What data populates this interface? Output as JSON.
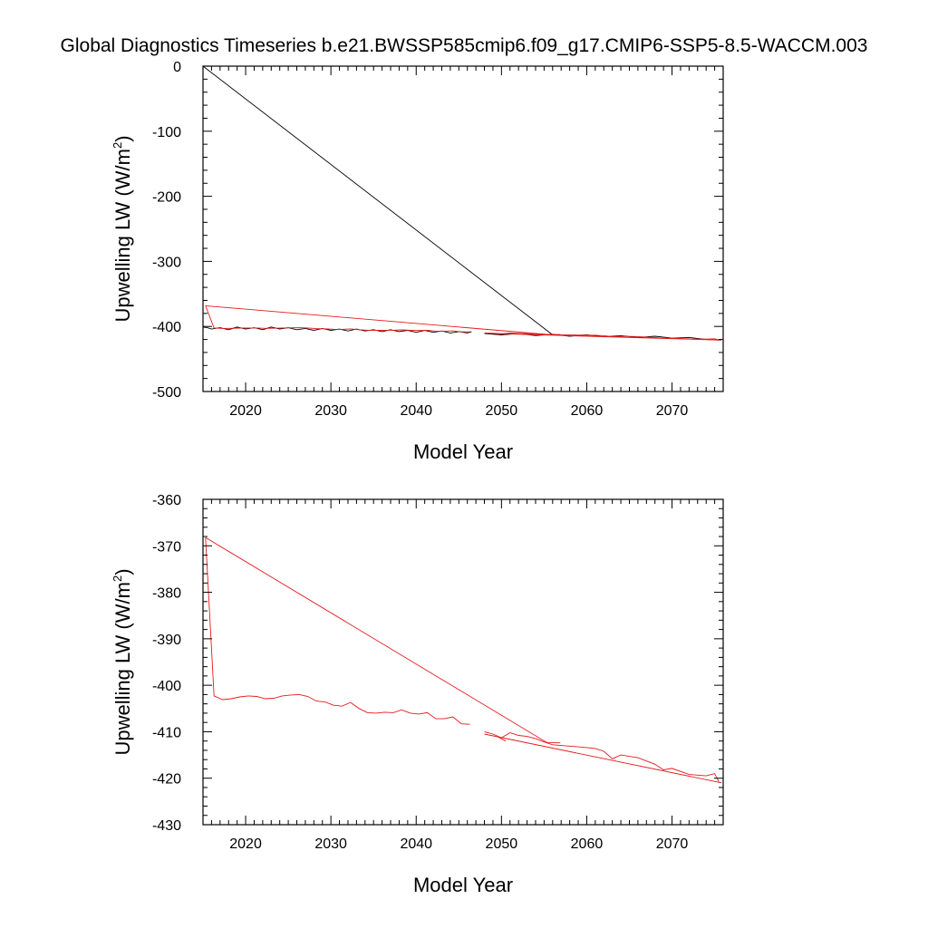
{
  "title": "Global Diagnostics Timeseries b.e21.BWSSP585cmip6.f09_g17.CMIP6-SSP5-8.5-WACCM.003",
  "colors": {
    "annual": "#000000",
    "smooth": "#e41a1c"
  },
  "chart_data": [
    {
      "type": "line",
      "xlabel": "Model Year",
      "ylabel": "Upwelling LW (W/m",
      "ylabel_sup": "2",
      "ylabel_end": ")",
      "xlim": [
        2015,
        2076
      ],
      "ylim": [
        -500,
        0
      ],
      "xticks": [
        2020,
        2030,
        2040,
        2050,
        2060,
        2070
      ],
      "xtick_labels": [
        "2020",
        "2030",
        "2040",
        "2050",
        "2060",
        "2070"
      ],
      "yticks": [
        0,
        -100,
        -200,
        -300,
        -400,
        -500
      ],
      "ytick_labels": [
        "0",
        "-100",
        "-200",
        "-300",
        "-400",
        "-500"
      ],
      "series": [
        {
          "color": "#000000",
          "x": [
            2015.0,
            2015.5,
            2016.0,
            2017.0,
            2018.0,
            2019.0,
            2020.0,
            2021.0,
            2022.0,
            2023.0,
            2024.0,
            2025.0,
            2026.0,
            2027.0,
            2028.0,
            2029.0,
            2030.0,
            2031.0,
            2032.0,
            2033.0,
            2034.0,
            2035.0,
            2036.0,
            2037.0,
            2038.0,
            2039.0,
            2040.0,
            2041.0,
            2042.0,
            2043.0,
            2044.0,
            2045.0,
            2046.0,
            2046.5
          ],
          "y": [
            -401,
            -402,
            -404,
            -402,
            -405,
            -401,
            -404,
            -402,
            -405,
            -401,
            -404,
            -402,
            -405,
            -403,
            -406,
            -403,
            -406,
            -404,
            -407,
            -404,
            -407,
            -405,
            -408,
            -405,
            -408,
            -406,
            -409,
            -406,
            -409,
            -407,
            -410,
            -408,
            -410,
            -408
          ]
        },
        {
          "color": "#000000",
          "x": [
            2015.0,
            2056.0
          ],
          "y": [
            0,
            -413
          ]
        },
        {
          "color": "#000000",
          "x": [
            2048.0,
            2050.0,
            2052.0,
            2054.0,
            2056.0,
            2058.0,
            2060.0,
            2062.0,
            2064.0,
            2066.0,
            2068.0,
            2070.0,
            2072.0,
            2074.0,
            2075.5
          ],
          "y": [
            -411,
            -413,
            -411,
            -414,
            -412,
            -415,
            -413,
            -416,
            -414,
            -417,
            -415,
            -418,
            -417,
            -420,
            -421
          ]
        },
        {
          "color": "#e41a1c",
          "x": [
            2015.3,
            2016.3,
            2017.3,
            2018.3,
            2019.3,
            2020.3,
            2021.3,
            2022.3,
            2023.3,
            2024.3,
            2025.3,
            2026.3,
            2027.3,
            2028.3,
            2029.3,
            2030.3,
            2031.3,
            2032.3,
            2033.3,
            2034.3,
            2035.3,
            2036.3,
            2037.3,
            2038.3,
            2039.3,
            2040.3,
            2041.3,
            2042.3,
            2043.3,
            2044.3,
            2045.3,
            2046.3
          ],
          "y": [
            -368.2,
            -402.3,
            -403.1,
            -402.9,
            -402.5,
            -402.3,
            -402.4,
            -402.9,
            -402.8,
            -402.3,
            -402.1,
            -402.0,
            -402.4,
            -403.4,
            -403.6,
            -404.3,
            -404.5,
            -403.7,
            -405.0,
            -405.9,
            -406.0,
            -405.8,
            -405.9,
            -405.3,
            -406.0,
            -406.2,
            -405.9,
            -407.2,
            -407.2,
            -406.8,
            -408.3,
            -408.4
          ]
        },
        {
          "color": "#e41a1c",
          "x": [
            2015.3,
            2055.3,
            2056.9
          ],
          "y": [
            -368.2,
            -412.3,
            -412.4
          ]
        },
        {
          "color": "#e41a1c",
          "x": [
            2048.0,
            2049.0,
            2050.0,
            2051.0,
            2052.0,
            2053.0,
            2054.0,
            2055.0,
            2056.0,
            2058.0,
            2060.0,
            2061.0,
            2062.0,
            2063.0,
            2064.0,
            2066.0,
            2068.0,
            2069.0,
            2070.0,
            2072.0,
            2074.0,
            2075.0,
            2075.5
          ],
          "y": [
            -410.0,
            -410.5,
            -411.3,
            -410.2,
            -410.8,
            -411.0,
            -411.5,
            -412.2,
            -412.8,
            -413.1,
            -413.4,
            -413.6,
            -414.2,
            -415.8,
            -415.0,
            -415.6,
            -417.0,
            -418.2,
            -417.9,
            -419.2,
            -419.5,
            -419.0,
            -420.8
          ]
        },
        {
          "color": "#e41a1c",
          "x": [
            2048.0,
            2075.8
          ],
          "y": [
            -410.5,
            -421.0
          ]
        },
        {
          "color": "#e41a1c",
          "x": [
            2049.5,
            2050.5
          ],
          "y": [
            -411.0,
            -412.0
          ]
        }
      ]
    },
    {
      "type": "line",
      "xlabel": "Model Year",
      "ylabel": "Upwelling LW (W/m",
      "ylabel_sup": "2",
      "ylabel_end": ")",
      "xlim": [
        2015,
        2076
      ],
      "ylim": [
        -430,
        -360
      ],
      "xticks": [
        2020,
        2030,
        2040,
        2050,
        2060,
        2070
      ],
      "xtick_labels": [
        "2020",
        "2030",
        "2040",
        "2050",
        "2060",
        "2070"
      ],
      "yticks": [
        -360,
        -370,
        -380,
        -390,
        -400,
        -410,
        -420,
        -430
      ],
      "ytick_labels": [
        "-360",
        "-370",
        "-380",
        "-390",
        "-400",
        "-410",
        "-420",
        "-430"
      ],
      "series": [
        {
          "color": "#e41a1c",
          "x": [
            2015.3,
            2016.3,
            2017.3,
            2018.3,
            2019.3,
            2020.3,
            2021.3,
            2022.3,
            2023.3,
            2024.3,
            2025.3,
            2026.3,
            2027.3,
            2028.3,
            2029.3,
            2030.3,
            2031.3,
            2032.3,
            2033.3,
            2034.3,
            2035.3,
            2036.3,
            2037.3,
            2038.3,
            2039.3,
            2040.3,
            2041.3,
            2042.3,
            2043.3,
            2044.3,
            2045.3,
            2046.3
          ],
          "y": [
            -368.2,
            -402.3,
            -403.1,
            -402.9,
            -402.5,
            -402.3,
            -402.4,
            -402.9,
            -402.8,
            -402.3,
            -402.1,
            -402.0,
            -402.4,
            -403.4,
            -403.6,
            -404.3,
            -404.5,
            -403.7,
            -405.0,
            -405.9,
            -406.0,
            -405.8,
            -405.9,
            -405.3,
            -406.0,
            -406.2,
            -405.9,
            -407.2,
            -407.2,
            -406.8,
            -408.3,
            -408.4
          ]
        },
        {
          "color": "#e41a1c",
          "x": [
            2015.3,
            2055.3,
            2056.9
          ],
          "y": [
            -368.2,
            -412.3,
            -412.4
          ]
        },
        {
          "color": "#e41a1c",
          "x": [
            2048.0,
            2049.0,
            2050.0,
            2051.0,
            2052.0,
            2053.0,
            2054.0,
            2055.0,
            2056.0,
            2058.0,
            2060.0,
            2061.0,
            2062.0,
            2063.0,
            2064.0,
            2066.0,
            2068.0,
            2069.0,
            2070.0,
            2072.0,
            2074.0,
            2075.0,
            2075.5
          ],
          "y": [
            -410.0,
            -410.5,
            -411.3,
            -410.2,
            -410.8,
            -411.0,
            -411.5,
            -412.2,
            -412.8,
            -413.1,
            -413.4,
            -413.6,
            -414.2,
            -415.8,
            -415.0,
            -415.6,
            -417.0,
            -418.2,
            -417.9,
            -419.2,
            -419.5,
            -419.0,
            -420.8
          ]
        },
        {
          "color": "#e41a1c",
          "x": [
            2048.0,
            2075.8
          ],
          "y": [
            -410.5,
            -421.0
          ]
        },
        {
          "color": "#e41a1c",
          "x": [
            2049.5,
            2050.5
          ],
          "y": [
            -411.0,
            -412.0
          ]
        }
      ]
    }
  ]
}
